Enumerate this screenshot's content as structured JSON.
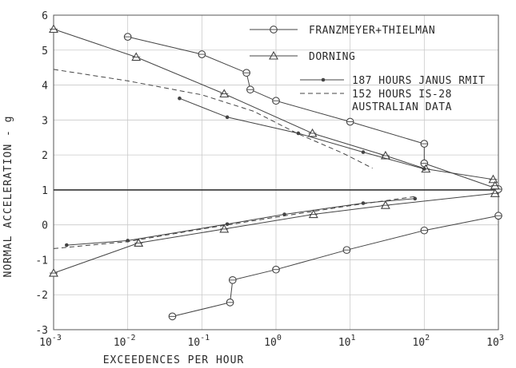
{
  "chart_data": {
    "type": "line",
    "xlabel": "EXCEEDENCES PER HOUR",
    "ylabel": "NORMAL ACCELERATION - g",
    "xscale": "log",
    "xlim": [
      0.001,
      1000
    ],
    "ylim": [
      -3,
      6
    ],
    "x_ticks": [
      0.001,
      0.01,
      0.1,
      1,
      10,
      100,
      1000
    ],
    "x_tick_labels": [
      {
        "base": "10",
        "exp": "-3"
      },
      {
        "base": "10",
        "exp": "-2"
      },
      {
        "base": "10",
        "exp": "-1"
      },
      {
        "base": "10",
        "exp": "0"
      },
      {
        "base": "10",
        "exp": "1"
      },
      {
        "base": "10",
        "exp": "2"
      },
      {
        "base": "10",
        "exp": "3"
      }
    ],
    "y_ticks": [
      -3,
      -2,
      -1,
      0,
      1,
      2,
      3,
      4,
      5,
      6
    ],
    "y_tick_labels": [
      "-3",
      "-2",
      "-1",
      "0",
      "1",
      "2",
      "3",
      "4",
      "5",
      "6"
    ],
    "grid": "major",
    "reference_line_y": 1,
    "legend_position": "top-right",
    "line_color": "#444444",
    "series": [
      {
        "name": "FRANZMEYER+THIELMAN",
        "marker": "circle",
        "style": "solid",
        "segments": [
          [
            [
              0.01,
              5.38
            ],
            [
              0.1,
              4.88
            ],
            [
              0.4,
              4.35
            ],
            [
              0.45,
              3.87
            ],
            [
              1,
              3.55
            ],
            [
              10,
              2.95
            ],
            [
              100,
              2.32
            ],
            [
              100,
              1.76
            ],
            [
              1000,
              1.02
            ]
          ],
          [
            [
              0.04,
              -2.62
            ],
            [
              0.24,
              -2.22
            ],
            [
              0.26,
              -1.58
            ],
            [
              1,
              -1.28
            ],
            [
              9,
              -0.72
            ],
            [
              100,
              -0.16
            ],
            [
              1000,
              0.26
            ]
          ]
        ]
      },
      {
        "name": "DORNING",
        "marker": "triangle",
        "style": "solid",
        "segments": [
          [
            [
              0.001,
              5.6
            ],
            [
              0.013,
              4.8
            ],
            [
              0.2,
              3.75
            ],
            [
              3.1,
              2.62
            ],
            [
              30,
              1.98
            ],
            [
              105,
              1.6
            ],
            [
              850,
              1.3
            ],
            [
              900,
              1.12
            ]
          ],
          [
            [
              0.001,
              -1.38
            ],
            [
              0.014,
              -0.52
            ],
            [
              0.2,
              -0.12
            ],
            [
              3.2,
              0.3
            ],
            [
              30,
              0.56
            ],
            [
              900,
              0.9
            ]
          ]
        ]
      },
      {
        "name": "187 HOURS JANUS RMIT",
        "marker": "dot",
        "style": "solid",
        "segments": [
          [
            [
              0.05,
              3.62
            ],
            [
              0.22,
              3.08
            ],
            [
              2,
              2.62
            ],
            [
              15,
              2.08
            ],
            [
              100,
              1.6
            ]
          ],
          [
            [
              0.0015,
              -0.58
            ],
            [
              0.01,
              -0.45
            ],
            [
              0.22,
              0.02
            ],
            [
              1.3,
              0.3
            ],
            [
              15,
              0.62
            ],
            [
              75,
              0.75
            ]
          ]
        ]
      },
      {
        "name": "152 HOURS IS-28\nAUSTRALIAN DATA",
        "marker": "none",
        "style": "dashed",
        "segments": [
          [
            [
              0.001,
              4.45
            ],
            [
              0.01,
              4.12
            ],
            [
              0.1,
              3.72
            ],
            [
              0.5,
              3.25
            ],
            [
              2,
              2.6
            ],
            [
              8,
              2.05
            ],
            [
              20,
              1.62
            ]
          ],
          [
            [
              0.001,
              -0.68
            ],
            [
              0.01,
              -0.48
            ],
            [
              0.1,
              -0.12
            ],
            [
              1,
              0.22
            ],
            [
              10,
              0.55
            ],
            [
              80,
              0.82
            ]
          ]
        ]
      }
    ]
  }
}
